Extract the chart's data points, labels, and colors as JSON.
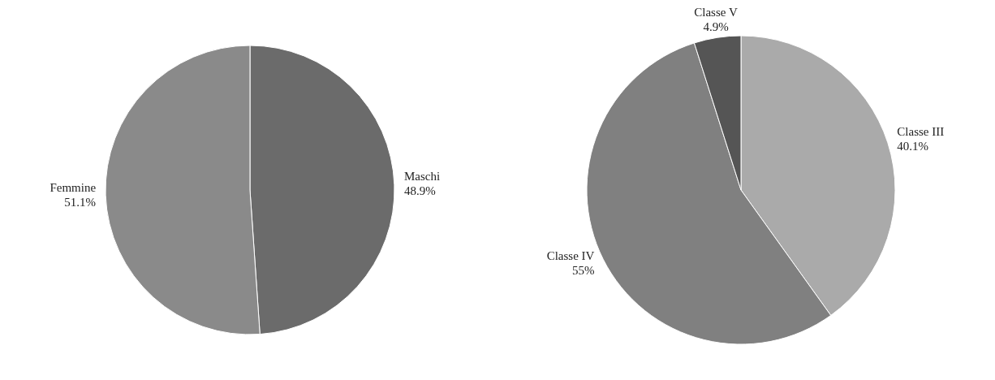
{
  "chart_data": [
    {
      "type": "pie",
      "categories": [
        "Maschi",
        "Femmine"
      ],
      "values": [
        48.9,
        51.1
      ],
      "colors": [
        "#6b6b6b",
        "#8a8a8a"
      ],
      "value_labels": [
        "48.9%",
        "51.1%"
      ],
      "legend": false
    },
    {
      "type": "pie",
      "categories": [
        "Classe III",
        "Classe IV",
        "Classe V"
      ],
      "values": [
        40.1,
        55,
        4.9
      ],
      "colors": [
        "#aaaaaa",
        "#808080",
        "#555555"
      ],
      "value_labels": [
        "40.1%",
        "55%",
        "4.9%"
      ],
      "legend": false
    }
  ]
}
